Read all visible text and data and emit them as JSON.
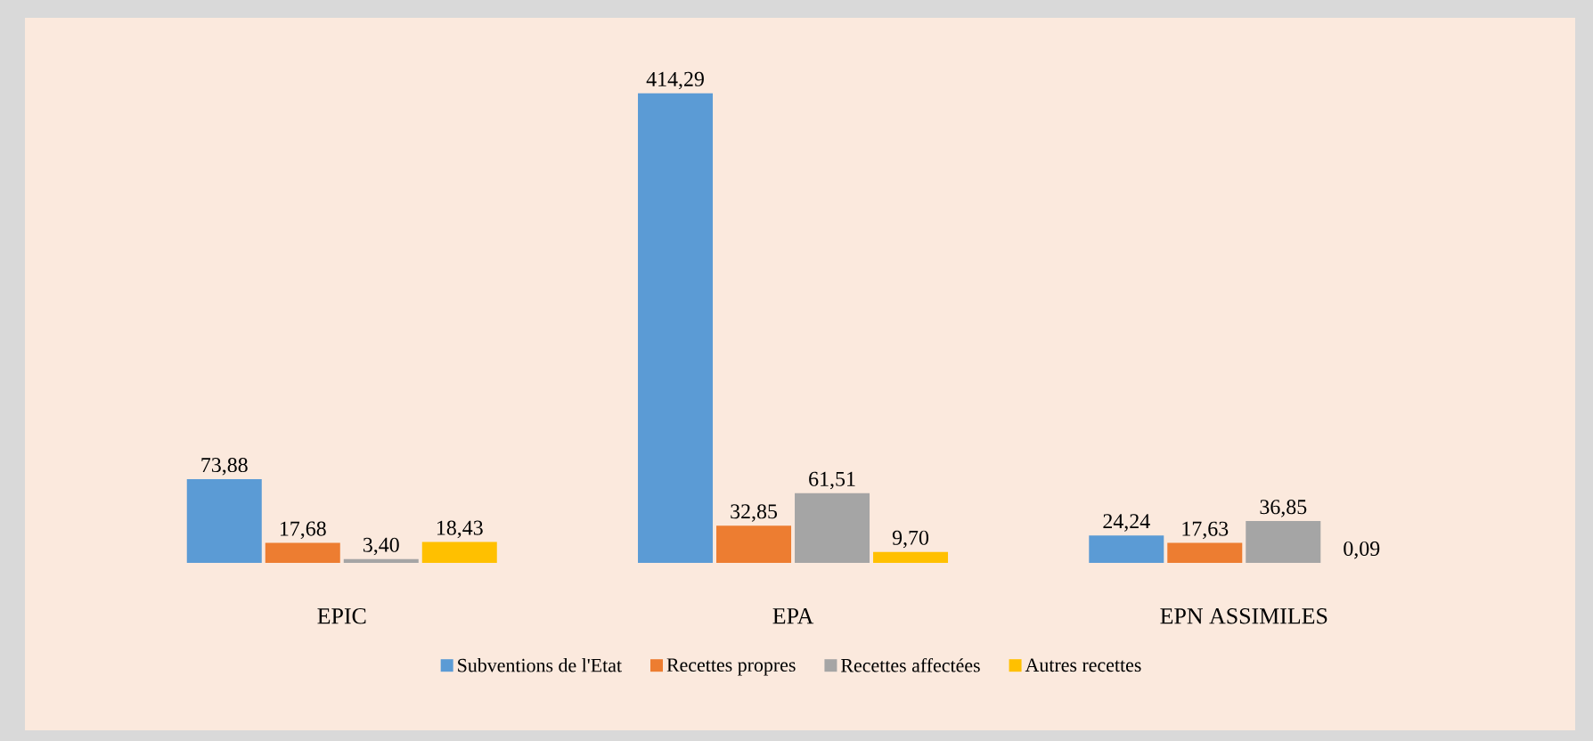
{
  "chart_data": {
    "type": "bar",
    "categories": [
      "EPIC",
      "EPA",
      "EPN ASSIMILES"
    ],
    "series": [
      {
        "name": "Subventions de l'Etat",
        "color": "#5b9bd5",
        "values": [
          73.88,
          414.29,
          24.24
        ],
        "value_labels": [
          "73,88",
          "414,29",
          "24,24"
        ]
      },
      {
        "name": "Recettes propres",
        "color": "#ed7d31",
        "values": [
          17.68,
          32.85,
          17.63
        ],
        "value_labels": [
          "17,68",
          "32,85",
          "17,63"
        ]
      },
      {
        "name": "Recettes affectées",
        "color": "#a5a5a5",
        "values": [
          3.4,
          61.51,
          36.85
        ],
        "value_labels": [
          "3,40",
          "61,51",
          "36,85"
        ]
      },
      {
        "name": "Autres recettes",
        "color": "#ffc000",
        "values": [
          18.43,
          9.7,
          0.09
        ],
        "value_labels": [
          "18,43",
          "9,70",
          "0,09"
        ]
      }
    ],
    "legend": "bottom"
  }
}
